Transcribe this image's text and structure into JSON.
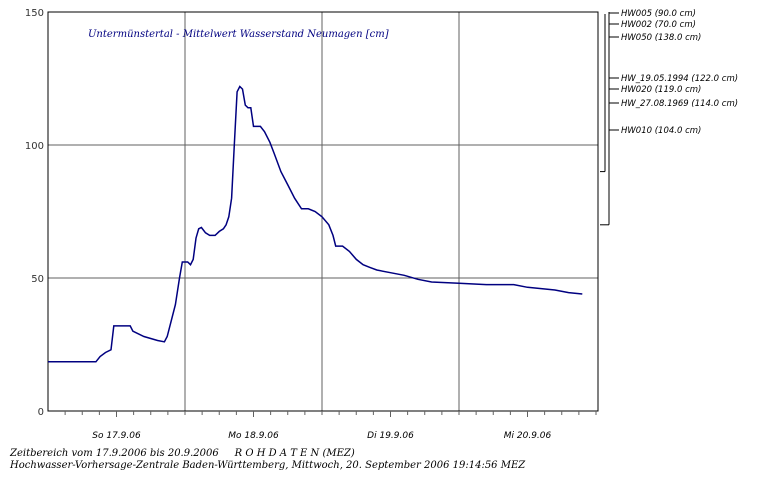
{
  "chart_data": {
    "type": "line",
    "title": "Untermünstertal - Mittelwert Wasserstand Neumagen [cm]",
    "ylim": [
      0,
      150
    ],
    "yticks": [
      0,
      50,
      100,
      150
    ],
    "xlim": [
      0,
      4.1
    ],
    "x_tick_labels": [
      {
        "x": 0.5,
        "label": "So 17.9.06"
      },
      {
        "x": 1.5,
        "label": "Mo 18.9.06"
      },
      {
        "x": 2.5,
        "label": "Di 19.9.06"
      },
      {
        "x": 3.5,
        "label": "Mi 20.9.06"
      }
    ],
    "grid": true,
    "line_color": "#000080",
    "series": [
      {
        "x": [
          0.0,
          0.1,
          0.2,
          0.35,
          0.38,
          0.42,
          0.46,
          0.48,
          0.5,
          0.52,
          0.6,
          0.62,
          0.7,
          0.8,
          0.85,
          0.87,
          0.9,
          0.93,
          0.96,
          0.98,
          1.02,
          1.04,
          1.06,
          1.08,
          1.1,
          1.12,
          1.15,
          1.18,
          1.22,
          1.25,
          1.28,
          1.3,
          1.32,
          1.34,
          1.36,
          1.38,
          1.4,
          1.42,
          1.44,
          1.46,
          1.48,
          1.5,
          1.52,
          1.55,
          1.58,
          1.62,
          1.65,
          1.7,
          1.75,
          1.8,
          1.85,
          1.9,
          1.95,
          2.0,
          2.05,
          2.08,
          2.1,
          2.15,
          2.2,
          2.25,
          2.3,
          2.35,
          2.4,
          2.5,
          2.6,
          2.7,
          2.8,
          3.0,
          3.2,
          3.4,
          3.5,
          3.6,
          3.7,
          3.8,
          3.9
        ],
        "y": [
          18.5,
          18.5,
          18.5,
          18.5,
          20.5,
          22,
          23,
          32,
          32,
          32,
          32,
          30,
          28,
          26.5,
          26,
          28,
          34,
          40,
          50,
          56,
          56,
          55,
          57,
          65,
          68.5,
          69,
          67,
          66,
          66,
          67.5,
          68.5,
          70,
          73,
          80,
          100,
          120,
          122,
          121,
          115,
          114,
          114,
          107,
          107,
          107,
          105,
          101,
          97,
          90,
          85,
          80,
          76,
          76,
          75,
          73,
          70,
          66,
          62,
          62,
          60,
          57,
          55,
          54,
          53,
          52,
          51,
          49.5,
          48.5,
          48,
          47.5,
          47.5,
          46.5,
          46,
          45.5,
          44.5,
          44
        ]
      }
    ],
    "marker_y": 70,
    "thresholds": [
      {
        "name": "HW005 (90.0 cm)",
        "value": 90
      },
      {
        "name": "HW002 (70.0 cm)",
        "value": 70
      },
      {
        "name": "HW050 (138.0 cm)",
        "value": 138
      },
      {
        "name": "HW_19.05.1994 (122.0 cm)",
        "value": 122
      },
      {
        "name": "HW020 (119.0 cm)",
        "value": 119
      },
      {
        "name": "HW_27.08.1969 (114.0 cm)",
        "value": 114
      },
      {
        "name": "HW010 (104.0 cm)",
        "value": 104
      }
    ]
  },
  "footer": {
    "line1": "Zeitbereich vom 17.9.2006 bis 20.9.2006     R O H D A T E N (MEZ)",
    "line2": "Hochwasser-Vorhersage-Zentrale Baden-Württemberg, Mittwoch, 20. September 2006 19:14:56 MEZ"
  }
}
